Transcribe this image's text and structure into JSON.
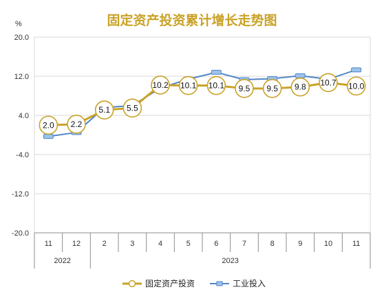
{
  "chart_data": {
    "type": "line",
    "title": "固定资产投资累计增长走势图",
    "ylabel": "%",
    "ylim": [
      -20,
      20
    ],
    "yticks": [
      "20.0",
      "12.0",
      "4.0",
      "-4.0",
      "-12.0",
      "-20.0"
    ],
    "ytick_values": [
      20,
      12,
      4,
      -4,
      -12,
      -20
    ],
    "categories": [
      "11",
      "12",
      "2",
      "3",
      "4",
      "5",
      "6",
      "7",
      "8",
      "9",
      "10",
      "11"
    ],
    "year_groups": [
      {
        "label": "2022",
        "count": 2
      },
      {
        "label": "2023",
        "count": 10
      }
    ],
    "grid": true,
    "legend_position": "bottom",
    "series": [
      {
        "name": "固定资产投资",
        "color": "#c9a227",
        "marker": "circle",
        "show_labels": true,
        "labels": [
          "2.0",
          "2.2",
          "5.1",
          "5.5",
          "10.2",
          "10.1",
          "10.1",
          "9.5",
          "9.5",
          "9.8",
          "10.7",
          "10.0"
        ],
        "values": [
          2.0,
          2.2,
          5.1,
          5.5,
          10.2,
          10.1,
          10.1,
          9.5,
          9.5,
          9.8,
          10.7,
          10.0
        ]
      },
      {
        "name": "工业投入",
        "color": "#4f86c6",
        "marker": "square",
        "show_labels": false,
        "values": [
          -0.3,
          0.5,
          5.6,
          6.0,
          9.6,
          11.4,
          12.8,
          11.3,
          11.5,
          12.1,
          11.4,
          13.3
        ]
      }
    ]
  },
  "colors": {
    "title": "#c9a227",
    "grid": "#d9d9d9",
    "axis": "#8c8c8c",
    "marker_fill": "#ffffff"
  }
}
